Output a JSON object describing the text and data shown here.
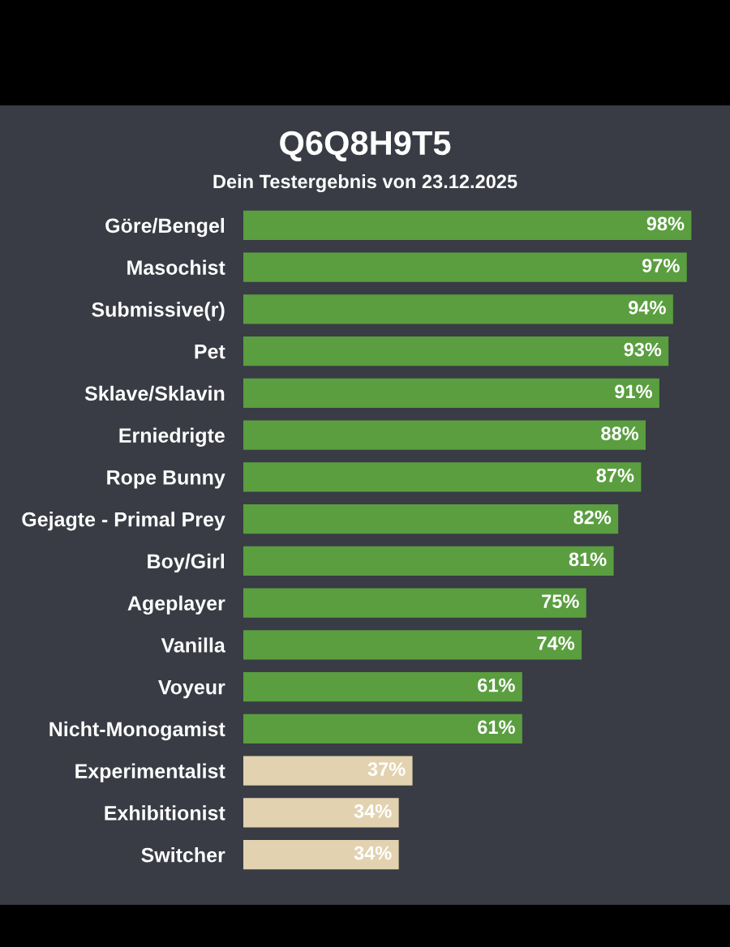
{
  "chart_data": {
    "type": "bar",
    "orientation": "horizontal",
    "title": "Q6Q8H9T5",
    "subtitle": "Dein Testergebnis von 23.12.2025",
    "categories": [
      "Göre/Bengel",
      "Masochist",
      "Submissive(r)",
      "Pet",
      "Sklave/Sklavin",
      "Erniedrigte",
      "Rope Bunny",
      "Gejagte - Primal Prey",
      "Boy/Girl",
      "Ageplayer",
      "Vanilla",
      "Voyeur",
      "Nicht-Monogamist",
      "Experimentalist",
      "Exhibitionist",
      "Switcher"
    ],
    "values": [
      98,
      97,
      94,
      93,
      91,
      88,
      87,
      82,
      81,
      75,
      74,
      61,
      61,
      37,
      34,
      34
    ],
    "colors": [
      "#5a9e40",
      "#5a9e40",
      "#5a9e40",
      "#5a9e40",
      "#5a9e40",
      "#5a9e40",
      "#5a9e40",
      "#5a9e40",
      "#5a9e40",
      "#5a9e40",
      "#5a9e40",
      "#5a9e40",
      "#5a9e40",
      "#e2d2b0",
      "#e2d2b0",
      "#e2d2b0"
    ],
    "value_labels": [
      "98%",
      "97%",
      "94%",
      "93%",
      "91%",
      "88%",
      "87%",
      "82%",
      "81%",
      "75%",
      "74%",
      "61%",
      "61%",
      "37%",
      "34%",
      "34%"
    ],
    "grid": false,
    "legend": false
  }
}
